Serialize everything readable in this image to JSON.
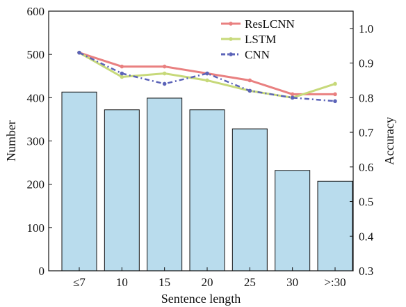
{
  "chart_data": {
    "type": "bar+line",
    "categories": [
      "≤7",
      "10",
      "15",
      "20",
      "25",
      "30",
      ">:30"
    ],
    "bars": {
      "values": [
        413,
        372,
        399,
        372,
        328,
        232,
        207
      ],
      "color": "#b9dced",
      "edge_color": "#111111"
    },
    "series": [
      {
        "name": "ResLCNN",
        "values": [
          0.93,
          0.89,
          0.89,
          0.87,
          0.85,
          0.81,
          0.81
        ],
        "color": "#e98080",
        "style": "solid"
      },
      {
        "name": "LSTM",
        "values": [
          0.93,
          0.86,
          0.87,
          0.85,
          0.82,
          0.8,
          0.84
        ],
        "color": "#c7d97a",
        "style": "solid"
      },
      {
        "name": "CNN",
        "values": [
          0.93,
          0.87,
          0.84,
          0.87,
          0.82,
          0.8,
          0.79
        ],
        "color": "#5b63b8",
        "style": "dashdot"
      }
    ],
    "xlabel": "Sentence length",
    "ylabel_left": "Number",
    "ylabel_right": "Accuracy",
    "ylim_left": [
      0,
      600
    ],
    "ylim_right": [
      0.3,
      1.05
    ],
    "yticks_left": [
      "0",
      "100",
      "200",
      "300",
      "400",
      "500",
      "600"
    ],
    "yticks_right": [
      "0.3",
      "0.4",
      "0.5",
      "0.6",
      "0.7",
      "0.8",
      "0.9",
      "1.0"
    ],
    "legend_placement": "top-right",
    "grid": false
  }
}
